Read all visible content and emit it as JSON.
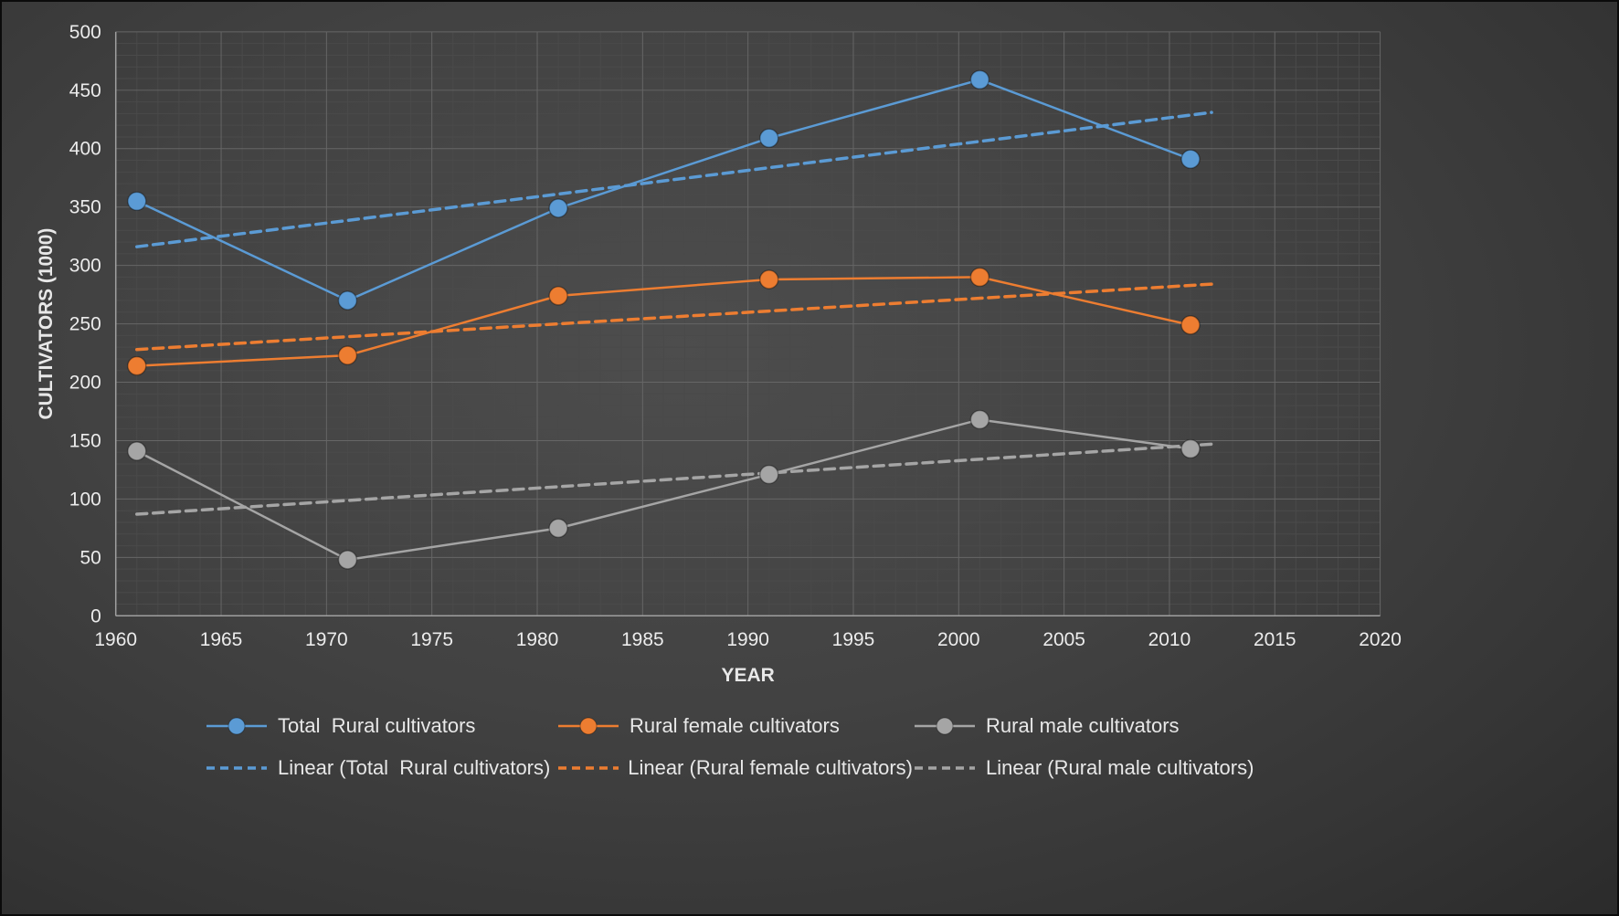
{
  "chart_data": {
    "type": "line",
    "title": "",
    "xlabel": "YEAR",
    "ylabel": "CULTIVATORS (1000)",
    "xlim": [
      1960,
      2020
    ],
    "ylim": [
      0,
      500
    ],
    "x_tick_step": 5,
    "y_tick_step": 50,
    "x_minor_step": 1,
    "y_minor_step": 10,
    "grid": true,
    "legend_position": "bottom",
    "x": [
      1961,
      1971,
      1981,
      1991,
      2001,
      2011
    ],
    "series": [
      {
        "name": "Total  Rural cultivators",
        "color": "#5B9BD5",
        "values": [
          355,
          270,
          349,
          409,
          459,
          391
        ]
      },
      {
        "name": "Rural female cultivators",
        "color": "#ED7D31",
        "values": [
          214,
          223,
          274,
          288,
          290,
          249
        ]
      },
      {
        "name": "Rural male cultivators",
        "color": "#A5A5A5",
        "values": [
          141,
          48,
          75,
          121,
          168,
          143
        ]
      }
    ],
    "trendlines": [
      {
        "name": "Linear (Total  Rural cultivators)",
        "color": "#5B9BD5",
        "x_range": [
          1961,
          2012
        ],
        "y_range": [
          316,
          431
        ]
      },
      {
        "name": "Linear (Rural female cultivators)",
        "color": "#ED7D31",
        "x_range": [
          1961,
          2012
        ],
        "y_range": [
          228,
          284
        ]
      },
      {
        "name": "Linear (Rural male cultivators)",
        "color": "#A5A5A5",
        "x_range": [
          1961,
          2012
        ],
        "y_range": [
          87,
          147
        ]
      }
    ],
    "x_tick_labels": [
      "1960",
      "1965",
      "1970",
      "1975",
      "1980",
      "1985",
      "1990",
      "1995",
      "2000",
      "2005",
      "2010",
      "2015",
      "2020"
    ],
    "y_tick_labels": [
      "0",
      "50",
      "100",
      "150",
      "200",
      "250",
      "300",
      "350",
      "400",
      "450",
      "500"
    ]
  },
  "colors": {
    "background_center": "#4d4d4d",
    "background_edge": "#2b2b2b",
    "grid_major": "#666666",
    "grid_minor": "#4a4a4a",
    "axis_line": "#9f9f9f",
    "text": "#ececec"
  }
}
